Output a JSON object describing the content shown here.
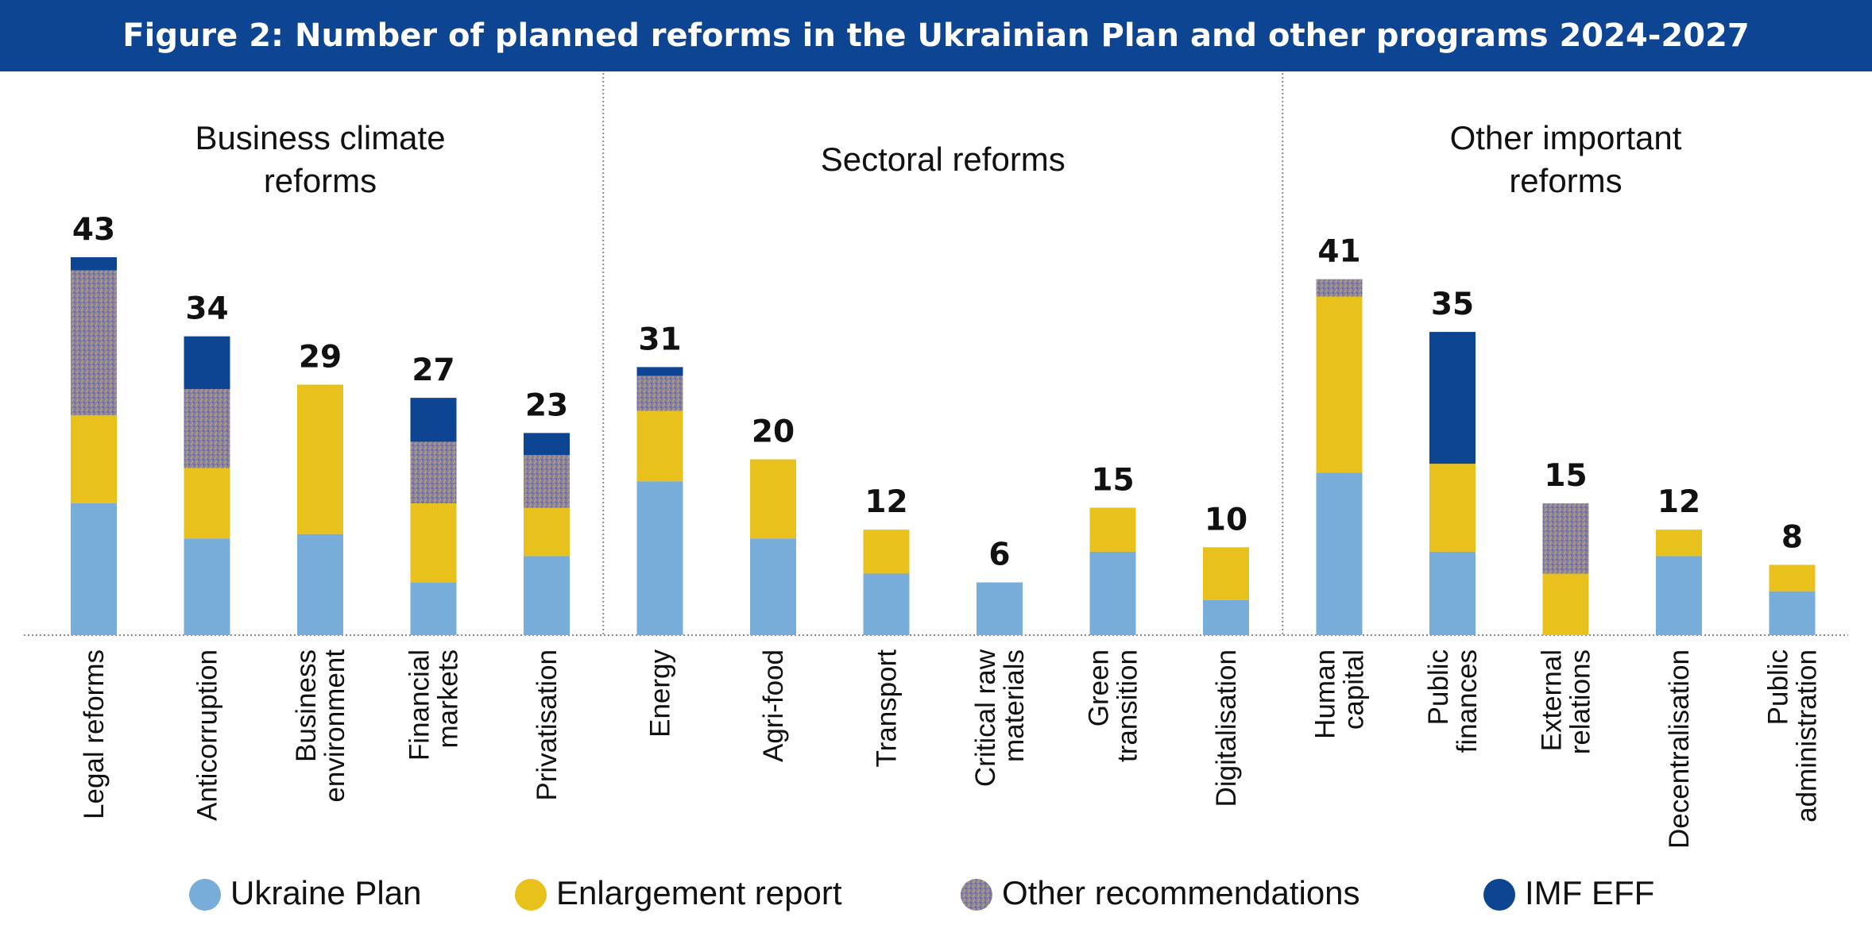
{
  "header": {
    "title": "Figure 2: Number of planned reforms in the Ukrainian Plan and other programs 2024-2027"
  },
  "chart_data": {
    "type": "bar",
    "stacked": true,
    "title": "Figure 2: Number of planned reforms in the Ukrainian Plan and other programs 2024-2027",
    "ylim": [
      0,
      45
    ],
    "grid": false,
    "legend_position": "bottom",
    "groups": [
      {
        "name": [
          "Business climate",
          "reforms"
        ],
        "categories": [
          0,
          1,
          2,
          3,
          4
        ]
      },
      {
        "name": [
          "Sectoral reforms"
        ],
        "categories": [
          5,
          6,
          7,
          8,
          9,
          10
        ]
      },
      {
        "name": [
          "Other important",
          "reforms"
        ],
        "categories": [
          11,
          12,
          13,
          14,
          15
        ]
      }
    ],
    "categories": [
      [
        "Legal reforms"
      ],
      [
        "Anticorruption"
      ],
      [
        "Business",
        "environment"
      ],
      [
        "Financial",
        "markets"
      ],
      [
        "Privatisation"
      ],
      [
        "Energy"
      ],
      [
        "Agri-food"
      ],
      [
        "Transport"
      ],
      [
        "Critical raw",
        "materials"
      ],
      [
        "Green",
        "transition"
      ],
      [
        "Digitalisation"
      ],
      [
        "Human",
        "capital"
      ],
      [
        "Public",
        "finances"
      ],
      [
        "External",
        "relations"
      ],
      [
        "Decentralisation"
      ],
      [
        "Public",
        "administration"
      ]
    ],
    "totals": [
      43,
      34,
      29,
      27,
      23,
      31,
      20,
      12,
      6,
      15,
      10,
      41,
      35,
      15,
      12,
      8
    ],
    "series": [
      {
        "name": "Ukraine Plan",
        "color": "#78acd9",
        "values": [
          15,
          11,
          11.5,
          6,
          9,
          17.5,
          11,
          7,
          6,
          9.5,
          4,
          18.5,
          9.5,
          0,
          9,
          5
        ]
      },
      {
        "name": "Enlargement report",
        "color": "#e8c11c",
        "values": [
          10,
          8,
          17,
          9,
          5.5,
          8,
          9,
          5,
          0,
          5,
          6,
          20,
          10,
          7,
          3,
          3
        ]
      },
      {
        "name": "Other recommendations",
        "color": "#87809e",
        "values": [
          16.5,
          9,
          0,
          7,
          6,
          4,
          0,
          0,
          0,
          0,
          0,
          2,
          0,
          8,
          0,
          0
        ]
      },
      {
        "name": "IMF EFF",
        "color": "#0e4592",
        "values": [
          1.5,
          6,
          0,
          5,
          2.5,
          1,
          0,
          0,
          0,
          0,
          0,
          0,
          15,
          0,
          0,
          0
        ]
      }
    ]
  }
}
